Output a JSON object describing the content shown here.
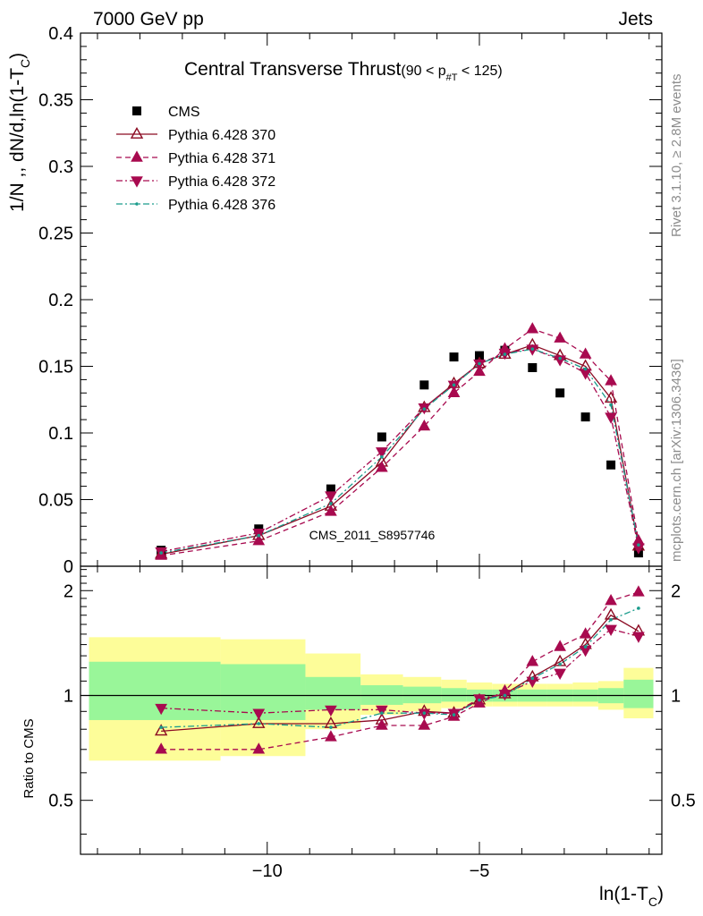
{
  "header": {
    "left": "7000 GeV pp",
    "right": "Jets",
    "side_top": "Rivet 3.1.10, ≥ 2.8M events",
    "side_bottom": "mcplots.cern.ch [arXiv:1306.3436]"
  },
  "chart_data": [
    {
      "type": "scatter",
      "panel": "main",
      "title": "Central Transverse Thrust",
      "title_cut": "(90 < p",
      "title_cut_sub": "#T",
      "title_cut_end": " < 125)",
      "ylabel": "1/N ,, dN/d,ln(1-T",
      "ylabel_sub": "C",
      "ylabel_end": ")",
      "ylim": [
        0,
        0.4
      ],
      "yticks": [
        "0",
        "0.05",
        "0.1",
        "0.15",
        "0.2",
        "0.25",
        "0.3",
        "0.35",
        "0.4"
      ],
      "watermark": "CMS_2011_S8957746",
      "legend_position": "top-left",
      "x": [
        -12.5,
        -10.2,
        -8.5,
        -7.3,
        -6.3,
        -5.6,
        -5.0,
        -4.4,
        -3.75,
        -3.1,
        -2.5,
        -1.9,
        -1.25
      ],
      "series": [
        {
          "name": "CMS",
          "color": "#000000",
          "marker": "square",
          "values": [
            0.012,
            0.028,
            0.058,
            0.097,
            0.136,
            0.157,
            0.158,
            0.162,
            0.149,
            0.13,
            0.112,
            0.076,
            0.01
          ]
        },
        {
          "name": "Pythia 6.428 370",
          "color": "#8b0a22",
          "marker": "triangle-up-open",
          "line": "solid",
          "values": [
            0.009,
            0.023,
            0.045,
            0.078,
            0.119,
            0.137,
            0.152,
            0.159,
            0.166,
            0.158,
            0.15,
            0.126,
            0.015
          ]
        },
        {
          "name": "Pythia 6.428 371",
          "color": "#a80a4f",
          "marker": "triangle-up",
          "line": "dashed",
          "values": [
            0.008,
            0.019,
            0.041,
            0.074,
            0.105,
            0.13,
            0.146,
            0.163,
            0.178,
            0.171,
            0.159,
            0.139,
            0.019
          ]
        },
        {
          "name": "Pythia 6.428 372",
          "color": "#a80a4f",
          "marker": "triangle-down",
          "line": "dash-dot",
          "values": [
            0.011,
            0.025,
            0.053,
            0.086,
            0.119,
            0.136,
            0.152,
            0.16,
            0.163,
            0.155,
            0.145,
            0.112,
            0.014
          ]
        },
        {
          "name": "Pythia 6.428 376",
          "color": "#1a9c8c",
          "marker": "dot",
          "line": "dash-dot",
          "values": [
            0.01,
            0.023,
            0.047,
            0.082,
            0.118,
            0.136,
            0.152,
            0.159,
            0.163,
            0.156,
            0.148,
            0.121,
            0.016
          ]
        }
      ]
    },
    {
      "type": "scatter",
      "panel": "ratio",
      "ylabel": "Ratio to CMS",
      "xlabel": "ln(1-T",
      "xlabel_sub": "C",
      "xlabel_end": ")",
      "xlim": [
        -14.4,
        -0.7
      ],
      "xticks": [
        -10,
        -5
      ],
      "xtick_labels": [
        "−10",
        "−5"
      ],
      "ylim": [
        0.35,
        2.35
      ],
      "yticks": [
        0.5,
        1,
        2
      ],
      "ytick_labels": [
        "0.5",
        "1",
        "2"
      ],
      "reference_line": 1,
      "bins": [
        {
          "lo": -14.2,
          "hi": -11.1,
          "green": [
            0.85,
            1.25
          ],
          "yellow": [
            0.65,
            1.47
          ]
        },
        {
          "lo": -11.1,
          "hi": -9.1,
          "green": [
            0.85,
            1.23
          ],
          "yellow": [
            0.67,
            1.45
          ]
        },
        {
          "lo": -9.1,
          "hi": -7.8,
          "green": [
            0.91,
            1.13
          ],
          "yellow": [
            0.8,
            1.32
          ]
        },
        {
          "lo": -7.8,
          "hi": -6.8,
          "green": [
            0.94,
            1.07
          ],
          "yellow": [
            0.88,
            1.15
          ]
        },
        {
          "lo": -6.8,
          "hi": -5.9,
          "green": [
            0.95,
            1.06
          ],
          "yellow": [
            0.9,
            1.13
          ]
        },
        {
          "lo": -5.9,
          "hi": -5.3,
          "green": [
            0.96,
            1.05
          ],
          "yellow": [
            0.92,
            1.11
          ]
        },
        {
          "lo": -5.3,
          "hi": -4.7,
          "green": [
            0.96,
            1.04
          ],
          "yellow": [
            0.93,
            1.09
          ]
        },
        {
          "lo": -4.7,
          "hi": -4.1,
          "green": [
            0.96,
            1.04
          ],
          "yellow": [
            0.93,
            1.08
          ]
        },
        {
          "lo": -4.1,
          "hi": -3.4,
          "green": [
            0.96,
            1.04
          ],
          "yellow": [
            0.93,
            1.08
          ]
        },
        {
          "lo": -3.4,
          "hi": -2.8,
          "green": [
            0.96,
            1.04
          ],
          "yellow": [
            0.93,
            1.08
          ]
        },
        {
          "lo": -2.8,
          "hi": -2.2,
          "green": [
            0.96,
            1.04
          ],
          "yellow": [
            0.93,
            1.09
          ]
        },
        {
          "lo": -2.2,
          "hi": -1.6,
          "green": [
            0.95,
            1.05
          ],
          "yellow": [
            0.91,
            1.1
          ]
        },
        {
          "lo": -1.6,
          "hi": -0.9,
          "green": [
            0.92,
            1.11
          ],
          "yellow": [
            0.86,
            1.2
          ]
        }
      ],
      "x": [
        -12.5,
        -10.2,
        -8.5,
        -7.3,
        -6.3,
        -5.6,
        -5.0,
        -4.4,
        -3.75,
        -3.1,
        -2.5,
        -1.9,
        -1.25
      ],
      "series": [
        {
          "name": "Pythia 6.428 370",
          "color": "#8b0a22",
          "marker": "triangle-up-open",
          "line": "solid",
          "values": [
            0.79,
            0.83,
            0.83,
            0.85,
            0.9,
            0.89,
            0.97,
            1.01,
            1.13,
            1.25,
            1.4,
            1.7,
            1.53
          ]
        },
        {
          "name": "Pythia 6.428 371",
          "color": "#a80a4f",
          "marker": "triangle-up",
          "line": "dashed",
          "values": [
            0.7,
            0.7,
            0.76,
            0.82,
            0.82,
            0.87,
            0.95,
            1.03,
            1.25,
            1.38,
            1.5,
            1.87,
            1.98
          ]
        },
        {
          "name": "Pythia 6.428 372",
          "color": "#a80a4f",
          "marker": "triangle-down",
          "line": "dash-dot",
          "values": [
            0.92,
            0.89,
            0.91,
            0.91,
            0.89,
            0.89,
            0.98,
            1.01,
            1.1,
            1.16,
            1.35,
            1.55,
            1.48
          ]
        },
        {
          "name": "Pythia 6.428 376",
          "color": "#1a9c8c",
          "marker": "dot",
          "line": "dash-dot",
          "values": [
            0.81,
            0.83,
            0.81,
            0.89,
            0.89,
            0.88,
            0.97,
            1.0,
            1.12,
            1.23,
            1.38,
            1.65,
            1.78
          ]
        }
      ]
    }
  ]
}
